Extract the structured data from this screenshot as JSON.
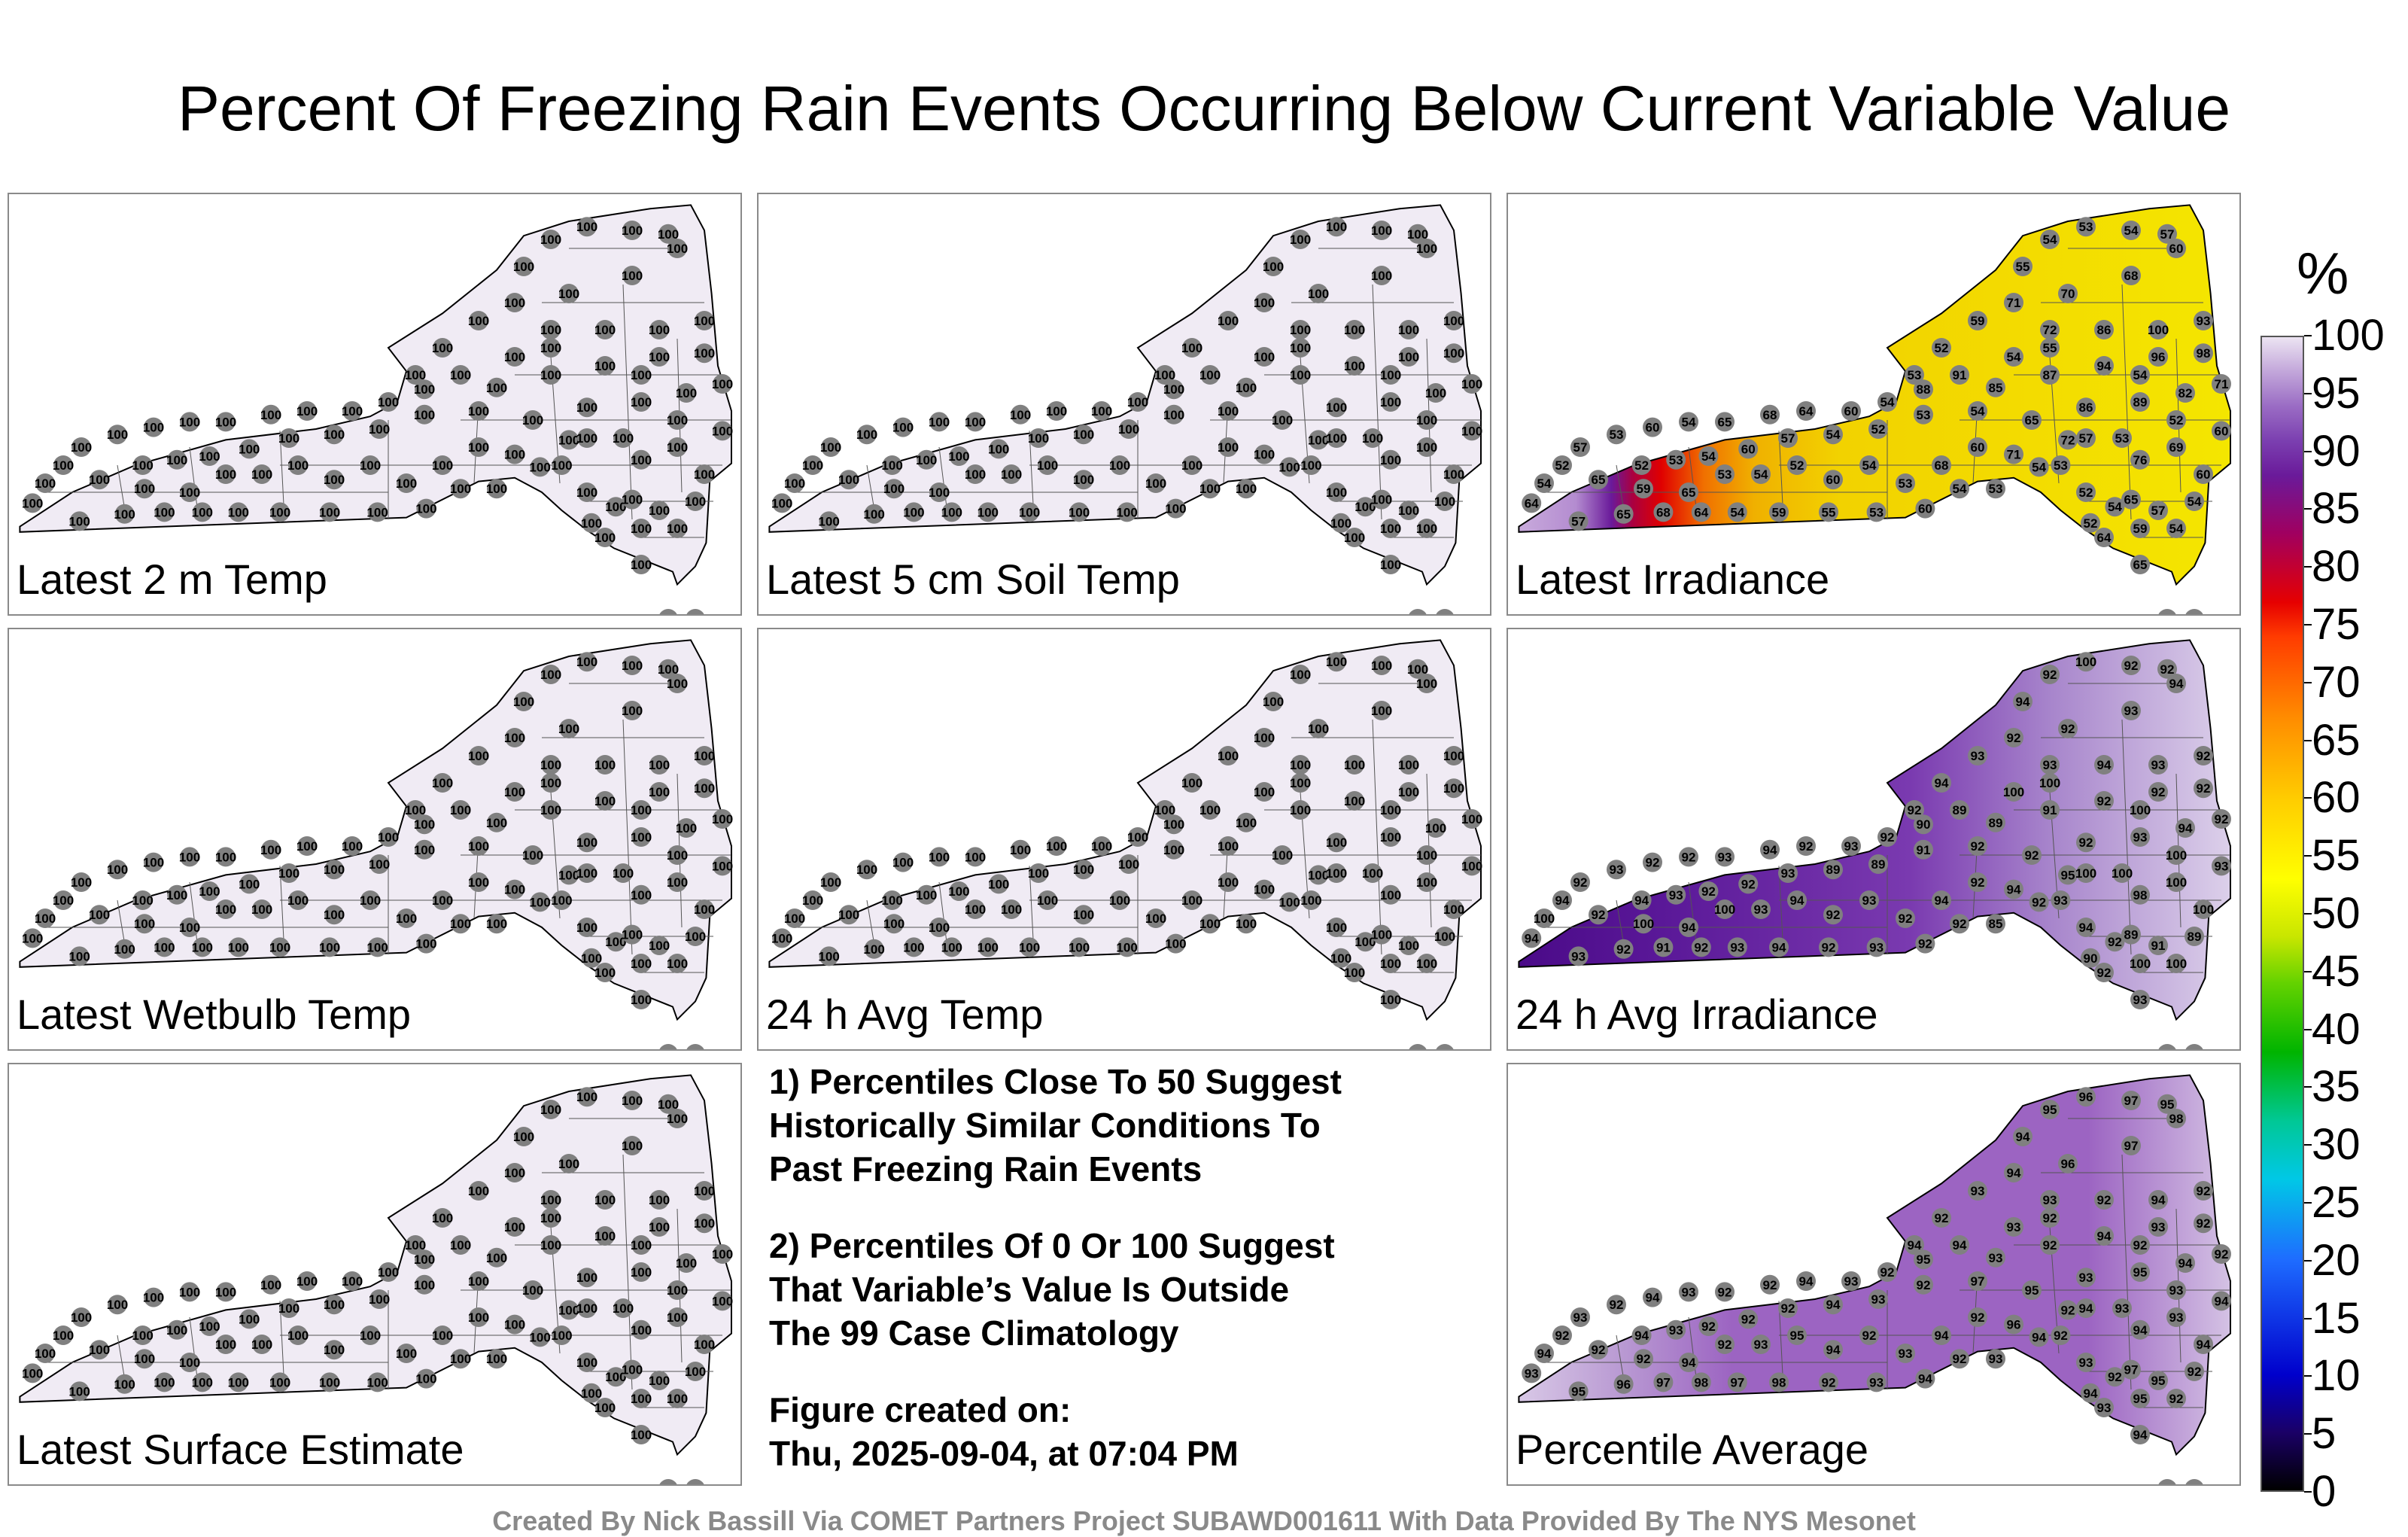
{
  "title": "Percent Of Freezing Rain Events Occurring Below Current Variable Value",
  "panels": [
    {
      "id": "p1",
      "label": "Latest 2 m Temp",
      "scheme": "flat100"
    },
    {
      "id": "p2",
      "label": "Latest 5 cm Soil Temp",
      "scheme": "flat100"
    },
    {
      "id": "p3",
      "label": "Latest Irradiance",
      "scheme": "irradiance"
    },
    {
      "id": "p4",
      "label": "Latest Wetbulb Temp",
      "scheme": "flat100"
    },
    {
      "id": "p5",
      "label": "24 h Avg Temp",
      "scheme": "flat100"
    },
    {
      "id": "p6",
      "label": "24 h Avg Irradiance",
      "scheme": "avgirr"
    },
    {
      "id": "p7",
      "label": "Latest Surface Estimate",
      "scheme": "flat100"
    },
    {
      "id": "p9",
      "label": "Percentile Average",
      "scheme": "average"
    }
  ],
  "notes": {
    "n1_l1": "1) Percentiles Close To 50 Suggest",
    "n1_l2": "Historically Similar Conditions To",
    "n1_l3": "Past Freezing Rain Events",
    "n2_l1": "2) Percentiles Of 0 Or 100 Suggest",
    "n2_l2": "That Variable’s Value Is Outside",
    "n2_l3": "The 99 Case Climatology",
    "n3_l1": "Figure created on:",
    "n3_l2": "Thu, 2025-09-04, at 07:04 PM"
  },
  "colorbar": {
    "unit": "%",
    "ticks": [
      "100",
      "95",
      "90",
      "85",
      "80",
      "75",
      "70",
      "65",
      "60",
      "55",
      "50",
      "45",
      "40",
      "35",
      "30",
      "25",
      "20",
      "15",
      "10",
      "5",
      "0"
    ]
  },
  "credit": "Created By Nick Bassill Via COMET Partners Project SUBAWD001611 With Data Provided By The NYS Mesonet",
  "colors": {
    "flat": "#f0ebf4",
    "station": "#808080",
    "avg_irr": "#6a28a8",
    "avg": "#9a62c0"
  }
}
